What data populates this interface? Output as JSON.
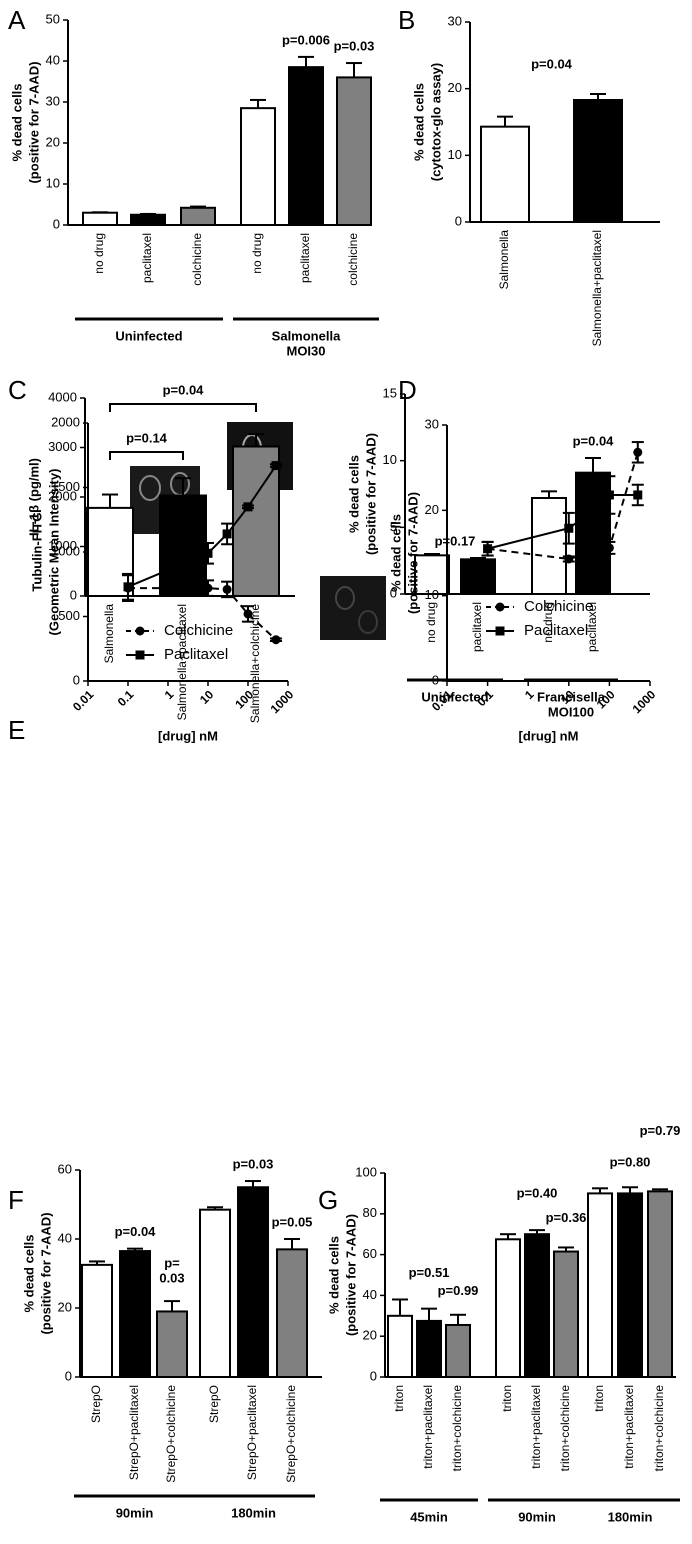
{
  "chart_data": [
    {
      "type": "bar",
      "panel": "A",
      "y_label": [
        "% dead cells",
        "(positive for 7-AAD)"
      ],
      "categories": [
        "no drug",
        "paclitaxel",
        "colchicine",
        "no drug",
        "paclitaxel",
        "colchicine"
      ],
      "values": [
        3,
        2.5,
        4.2,
        28.5,
        38.5,
        36
      ],
      "errors": [
        0.1,
        0.2,
        0.3,
        2,
        2.5,
        3.5
      ],
      "colors": [
        "#ffffff",
        "#000000",
        "#808080",
        "#ffffff",
        "#000000",
        "#808080"
      ],
      "ylim": [
        0,
        50
      ],
      "yticks": [
        0,
        10,
        20,
        30,
        40,
        50
      ],
      "p_labels": [
        null,
        null,
        null,
        null,
        "p=0.006",
        "p=0.03"
      ],
      "groups": [
        {
          "label": [
            "Uninfected"
          ],
          "size": 3
        },
        {
          "label": [
            "Salmonella",
            "MOI30"
          ],
          "size": 3
        }
      ]
    },
    {
      "type": "bar",
      "panel": "B",
      "y_label": [
        "% dead cells",
        "(cytotox-glo assay)"
      ],
      "categories": [
        "Salmonella",
        "Salmonella+paclitaxel"
      ],
      "values": [
        14.3,
        18.3
      ],
      "errors": [
        1.5,
        0.9
      ],
      "colors": [
        "#ffffff",
        "#000000"
      ],
      "ylim": [
        0,
        30
      ],
      "yticks": [
        0,
        10,
        20,
        30
      ],
      "annotation": "p=0.04"
    },
    {
      "type": "bar",
      "panel": "C",
      "y_label": [
        "IL-1β (pg/ml)"
      ],
      "categories": [
        "Salmonella",
        "Salmonella+paclitaxel",
        "Salmonella+colchicine"
      ],
      "values": [
        1780,
        2030,
        3020
      ],
      "errors": [
        270,
        350,
        250
      ],
      "colors": [
        "#ffffff",
        "#000000",
        "#808080"
      ],
      "ylim": [
        0,
        4000
      ],
      "yticks": [
        0,
        1000,
        2000,
        3000,
        4000
      ],
      "comparisons": [
        "p=0.14",
        "p=0.04"
      ]
    },
    {
      "type": "bar",
      "panel": "D",
      "y_label": [
        "% dead cells",
        "(positive for 7-AAD)"
      ],
      "categories": [
        "no drug",
        "paclitaxel",
        "no drug",
        "paclitaxel"
      ],
      "values": [
        2.9,
        2.6,
        7.2,
        9.1
      ],
      "errors": [
        0.1,
        0.1,
        0.5,
        1.1
      ],
      "colors": [
        "#ffffff",
        "#000000",
        "#ffffff",
        "#000000"
      ],
      "ylim": [
        0,
        15
      ],
      "yticks": [
        0,
        5,
        10,
        15
      ],
      "p_labels": [
        null,
        "p=0.17",
        null,
        "p=0.04"
      ],
      "groups": [
        {
          "label": [
            "Uninfected"
          ],
          "size": 2
        },
        {
          "label": [
            "Francisella",
            "MOI100"
          ],
          "size": 2
        }
      ]
    },
    {
      "type": "line",
      "panel": "E",
      "y_label": [
        "Tubulin-FITC",
        "(Geometric Mean Intensity)"
      ],
      "x_label": "[drug] nM",
      "log_x": true,
      "xlim": [
        0.01,
        1000
      ],
      "xticks": [
        0.01,
        0.1,
        1,
        10,
        100,
        1000
      ],
      "ylim": [
        0,
        2000
      ],
      "yticks": [
        0,
        500,
        1000,
        1500,
        2000
      ],
      "x": [
        0.1,
        10,
        30,
        100,
        500
      ],
      "series": [
        {
          "name": "Colchicine",
          "color": "#000000",
          "marker": "circle",
          "dash": true,
          "values": [
            720,
            720,
            710,
            520,
            320
          ],
          "errors": [
            100,
            60,
            60,
            60,
            10
          ]
        },
        {
          "name": "Paclitaxel",
          "color": "#000000",
          "marker": "square",
          "dash": false,
          "values": [
            730,
            990,
            1140,
            1350,
            1670
          ],
          "errors": [
            100,
            80,
            80,
            10,
            10
          ]
        }
      ]
    },
    {
      "type": "line",
      "y_label": [
        "% dead cells",
        "(positive for 7-AAD)"
      ],
      "x_label": "[drug] nM",
      "log_x": true,
      "xlim": [
        0.01,
        1000
      ],
      "xticks": [
        0.01,
        0.1,
        1,
        10,
        100,
        1000
      ],
      "ylim": [
        0,
        30
      ],
      "yticks": [
        0,
        10,
        20,
        30
      ],
      "x": [
        0.1,
        10,
        30,
        100,
        500
      ],
      "series": [
        {
          "name": "Colchicine",
          "color": "#000000",
          "marker": "circle",
          "dash": true,
          "values": [
            15.5,
            14.3,
            14.9,
            15.6,
            26.8
          ],
          "errors": [
            0.8,
            0.3,
            0.3,
            0.7,
            1.2
          ]
        },
        {
          "name": "Paclitaxel",
          "color": "#000000",
          "marker": "square",
          "dash": false,
          "values": [
            15.5,
            17.9,
            19.5,
            21.8,
            21.8
          ],
          "errors": [
            0.8,
            1.8,
            1.8,
            2.2,
            1.2
          ]
        }
      ]
    },
    {
      "type": "bar",
      "panel": "F",
      "y_label": [
        "% dead cells",
        "(positive for 7-AAD)"
      ],
      "categories": [
        "StrepO",
        "StrepO+paclitaxel",
        "StrepO+colchicine",
        "StrepO",
        "StrepO+paclitaxel",
        "StrepO+colchicine"
      ],
      "values": [
        32.5,
        36.5,
        19,
        48.5,
        55,
        37
      ],
      "errors": [
        1,
        0.7,
        3,
        0.7,
        1.8,
        3
      ],
      "colors": [
        "#ffffff",
        "#000000",
        "#808080",
        "#ffffff",
        "#000000",
        "#808080"
      ],
      "ylim": [
        0,
        60
      ],
      "yticks": [
        0,
        20,
        40,
        60
      ],
      "p_labels": [
        null,
        "p=0.04",
        [
          "p=",
          "0.03"
        ],
        null,
        "p=0.03",
        "p=0.05"
      ],
      "groups": [
        {
          "label": [
            "90min"
          ],
          "size": 3
        },
        {
          "label": [
            "180min"
          ],
          "size": 3
        }
      ]
    },
    {
      "type": "bar",
      "panel": "G",
      "y_label": [
        "% dead cells",
        "(positive for 7-AAD)"
      ],
      "categories": [
        "triton",
        "triton+paclitaxel",
        "triton+colchicine",
        "triton",
        "triton+paclitaxel",
        "triton+colchicine",
        "triton",
        "triton+paclitaxel",
        "triton+colchicine"
      ],
      "values": [
        30,
        27.5,
        25.5,
        67.5,
        70,
        61.5,
        90,
        90,
        91
      ],
      "errors": [
        8,
        6,
        5,
        2.5,
        2,
        2,
        2.5,
        3,
        1
      ],
      "colors": [
        "#ffffff",
        "#000000",
        "#808080",
        "#ffffff",
        "#000000",
        "#808080",
        "#ffffff",
        "#000000",
        "#808080"
      ],
      "ylim": [
        0,
        100
      ],
      "yticks": [
        0,
        20,
        40,
        60,
        80,
        100
      ],
      "p_labels": [
        null,
        "p=0.51",
        "p=0.99",
        null,
        "p=0.40",
        "p=0.36",
        null,
        "p=0.80",
        "p=0.79"
      ],
      "groups": [
        {
          "label": [
            "45min"
          ],
          "size": 3
        },
        {
          "label": [
            "90min"
          ],
          "size": 3
        },
        {
          "label": [
            "180min"
          ],
          "size": 3
        }
      ]
    }
  ]
}
